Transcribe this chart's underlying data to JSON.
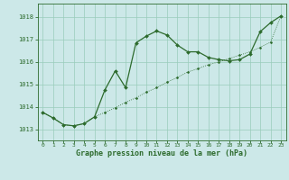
{
  "title": "Graphe pression niveau de la mer (hPa)",
  "background_color": "#cce8e8",
  "grid_color": "#99ccbb",
  "line_color": "#2d6b2d",
  "xlim": [
    -0.5,
    23.5
  ],
  "ylim": [
    1012.5,
    1018.6
  ],
  "yticks": [
    1013,
    1014,
    1015,
    1016,
    1017,
    1018
  ],
  "xticks": [
    0,
    1,
    2,
    3,
    4,
    5,
    6,
    7,
    8,
    9,
    10,
    11,
    12,
    13,
    14,
    15,
    16,
    17,
    18,
    19,
    20,
    21,
    22,
    23
  ],
  "series1_x": [
    0,
    1,
    2,
    3,
    4,
    5,
    6,
    7,
    8,
    9,
    10,
    11,
    12,
    13,
    14,
    15,
    16,
    17,
    18,
    19,
    20,
    21,
    22,
    23
  ],
  "series1_y": [
    1013.75,
    1013.5,
    1013.2,
    1013.15,
    1013.25,
    1013.55,
    1014.75,
    1015.6,
    1014.85,
    1016.85,
    1017.15,
    1017.38,
    1017.2,
    1016.75,
    1016.45,
    1016.45,
    1016.2,
    1016.1,
    1016.05,
    1016.1,
    1016.35,
    1017.35,
    1017.75,
    1018.05
  ],
  "series2_x": [
    0,
    1,
    2,
    3,
    4,
    5,
    6,
    7,
    8,
    9,
    10,
    11,
    12,
    13,
    14,
    15,
    16,
    17,
    18,
    19,
    20,
    21,
    22,
    23
  ],
  "series2_y": [
    1013.75,
    1013.5,
    1013.2,
    1013.15,
    1013.25,
    1013.55,
    1013.75,
    1013.95,
    1014.2,
    1014.4,
    1014.65,
    1014.85,
    1015.1,
    1015.3,
    1015.55,
    1015.7,
    1015.88,
    1016.0,
    1016.15,
    1016.3,
    1016.45,
    1016.65,
    1016.88,
    1018.05
  ]
}
